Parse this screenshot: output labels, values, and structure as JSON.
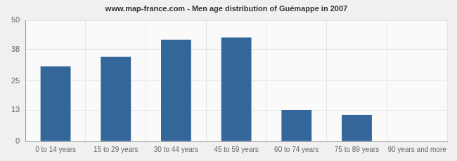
{
  "chart_data": {
    "type": "bar",
    "title": "www.map-france.com - Men age distribution of Guémappe in 2007",
    "categories": [
      "0 to 14 years",
      "15 to 29 years",
      "30 to 44 years",
      "45 to 59 years",
      "60 to 74 years",
      "75 to 89 years",
      "90 years and more"
    ],
    "values": [
      31,
      35,
      42,
      43,
      13,
      11,
      0
    ],
    "color": "#336699",
    "ylim": [
      0,
      50
    ],
    "yticks": [
      0,
      13,
      25,
      38,
      50
    ],
    "grid": true
  }
}
